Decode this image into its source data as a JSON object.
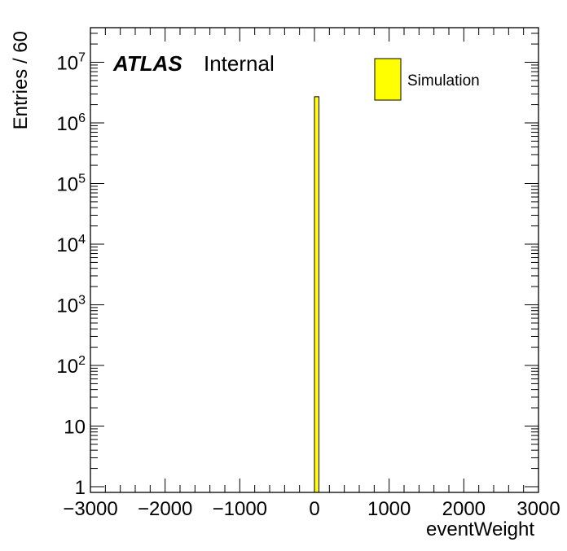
{
  "chart_data": {
    "type": "bar",
    "xlabel": "eventWeight",
    "ylabel": "Entries / 60",
    "xlim": [
      -3000,
      3000
    ],
    "ylim": [
      0.85,
      40000000
    ],
    "yscale": "log",
    "bin_width": 60,
    "x_ticks": [
      {
        "value": -3000,
        "label": "−3000"
      },
      {
        "value": -2000,
        "label": "−2000"
      },
      {
        "value": -1000,
        "label": "−1000"
      },
      {
        "value": 0,
        "label": "0"
      },
      {
        "value": 1000,
        "label": "1000"
      },
      {
        "value": 2000,
        "label": "2000"
      },
      {
        "value": 3000,
        "label": "3000"
      }
    ],
    "y_ticks": [
      {
        "value": 1,
        "base": "1",
        "exp": ""
      },
      {
        "value": 10,
        "base": "10",
        "exp": ""
      },
      {
        "value": 100,
        "base": "10",
        "exp": "2"
      },
      {
        "value": 1000,
        "base": "10",
        "exp": "3"
      },
      {
        "value": 10000,
        "base": "10",
        "exp": "4"
      },
      {
        "value": 100000,
        "base": "10",
        "exp": "5"
      },
      {
        "value": 1000000,
        "base": "10",
        "exp": "6"
      },
      {
        "value": 10000000,
        "base": "10",
        "exp": "7"
      }
    ],
    "series": [
      {
        "name": "Simulation",
        "color": "#ffff00",
        "edge_color": "#000000",
        "bins": [
          {
            "x_low": 0,
            "x_high": 60,
            "value": 2700000
          }
        ]
      }
    ],
    "legend": {
      "position": "top-right",
      "entries": [
        "Simulation"
      ]
    },
    "atlas_label": {
      "experiment": "ATLAS",
      "status": "Internal"
    },
    "grid": false
  }
}
